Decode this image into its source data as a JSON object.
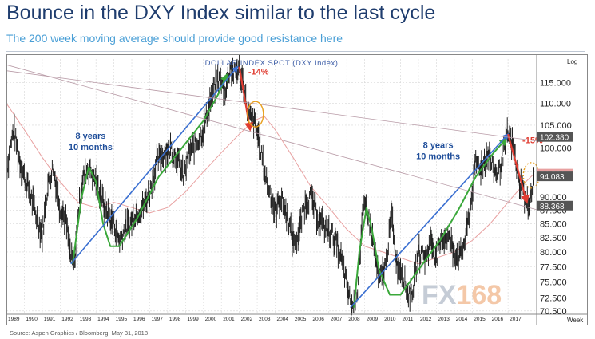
{
  "header": {
    "title": "Bounce in the DXY Index similar to the last cycle",
    "subtitle": "The 200 week moving average should provide good resistance here"
  },
  "source": "Source: Aspen Graphics / Bloomberg; May 31, 2018",
  "watermark": {
    "fx": "FX",
    "num": "168"
  },
  "colors": {
    "price": "#222222",
    "ma200": "#e8a0a0",
    "blue_trend": "#3a6fd1",
    "green_wave": "#3aa83a",
    "red_arrow": "#e03c31",
    "channel": "#b89aa6",
    "highlight": "#e8a020"
  },
  "chart_data": {
    "type": "line",
    "title": "DOLLAR INDEX SPOT (DXY Index)",
    "ylabel_top": "Log",
    "xlabel_right": "Week",
    "ylim": [
      70,
      121
    ],
    "xlim": [
      1989.0,
      2018.6
    ],
    "yticks": [
      70.5,
      72.5,
      75,
      77.5,
      80,
      82.5,
      85,
      87.5,
      90,
      95,
      100,
      105,
      110,
      115
    ],
    "ytick_labels": [
      "70.500",
      "72.500",
      "75.000",
      "77.500",
      "80.000",
      "82.500",
      "85.000",
      "87.500",
      "90.000",
      "95.000",
      "100.000",
      "105.000",
      "110.000",
      "115.000"
    ],
    "xticks": [
      1989,
      1990,
      1991,
      1992,
      1993,
      1994,
      1995,
      1996,
      1997,
      1998,
      1999,
      2000,
      2001,
      2002,
      2003,
      2004,
      2005,
      2006,
      2007,
      2008,
      2009,
      2010,
      2011,
      2012,
      2013,
      2014,
      2015,
      2016,
      2017
    ],
    "price_labels": [
      {
        "text": "102.380",
        "value": 102.38,
        "bg": "#555555"
      },
      {
        "text": "94.644",
        "value": 94.644,
        "bg": "#e8a0a0"
      },
      {
        "text": "94.083",
        "value": 94.083,
        "bg": "#555555"
      },
      {
        "text": "88.368",
        "value": 88.368,
        "bg": "#555555"
      }
    ],
    "series": [
      {
        "role": "price",
        "points": [
          [
            1989.0,
            95
          ],
          [
            1989.4,
            104
          ],
          [
            1989.7,
            98
          ],
          [
            1990.0,
            94
          ],
          [
            1990.3,
            91
          ],
          [
            1990.7,
            86
          ],
          [
            1991.0,
            83
          ],
          [
            1991.3,
            92
          ],
          [
            1991.6,
            96
          ],
          [
            1992.0,
            88
          ],
          [
            1992.3,
            86
          ],
          [
            1992.6,
            79
          ],
          [
            1992.8,
            78
          ],
          [
            1993.0,
            87
          ],
          [
            1993.3,
            94
          ],
          [
            1993.6,
            96
          ],
          [
            1993.9,
            94
          ],
          [
            1994.2,
            91
          ],
          [
            1994.5,
            88
          ],
          [
            1994.8,
            86
          ],
          [
            1995.0,
            85
          ],
          [
            1995.3,
            82
          ],
          [
            1995.6,
            84
          ],
          [
            1995.9,
            85
          ],
          [
            1996.2,
            87
          ],
          [
            1996.6,
            88
          ],
          [
            1997.0,
            91
          ],
          [
            1997.4,
            97
          ],
          [
            1997.8,
            99
          ],
          [
            1998.2,
            100
          ],
          [
            1998.6,
            97
          ],
          [
            1998.9,
            94
          ],
          [
            1999.2,
            99
          ],
          [
            1999.6,
            101
          ],
          [
            2000.0,
            104
          ],
          [
            2000.4,
            111
          ],
          [
            2000.8,
            116
          ],
          [
            2001.2,
            113
          ],
          [
            2001.5,
            119
          ],
          [
            2001.7,
            117
          ],
          [
            2002.0,
            119
          ],
          [
            2002.3,
            113
          ],
          [
            2002.5,
            107
          ],
          [
            2002.8,
            106
          ],
          [
            2003.1,
            102
          ],
          [
            2003.4,
            95
          ],
          [
            2003.8,
            90
          ],
          [
            2004.0,
            87
          ],
          [
            2004.3,
            90
          ],
          [
            2004.7,
            86
          ],
          [
            2005.0,
            82
          ],
          [
            2005.3,
            83
          ],
          [
            2005.7,
            89
          ],
          [
            2006.0,
            90
          ],
          [
            2006.4,
            86
          ],
          [
            2006.8,
            84
          ],
          [
            2007.2,
            83
          ],
          [
            2007.6,
            80
          ],
          [
            2007.9,
            76
          ],
          [
            2008.2,
            72
          ],
          [
            2008.3,
            71
          ],
          [
            2008.6,
            74
          ],
          [
            2008.9,
            87
          ],
          [
            2009.1,
            88
          ],
          [
            2009.4,
            83
          ],
          [
            2009.8,
            75
          ],
          [
            2010.2,
            78
          ],
          [
            2010.5,
            87
          ],
          [
            2010.8,
            78
          ],
          [
            2011.1,
            77
          ],
          [
            2011.4,
            73
          ],
          [
            2011.7,
            74
          ],
          [
            2012.0,
            80
          ],
          [
            2012.4,
            79
          ],
          [
            2012.7,
            82
          ],
          [
            2013.0,
            79
          ],
          [
            2013.3,
            82
          ],
          [
            2013.6,
            83
          ],
          [
            2014.0,
            80
          ],
          [
            2014.3,
            79
          ],
          [
            2014.6,
            82
          ],
          [
            2014.9,
            88
          ],
          [
            2015.2,
            97
          ],
          [
            2015.5,
            96
          ],
          [
            2015.9,
            99
          ],
          [
            2016.2,
            95
          ],
          [
            2016.5,
            95
          ],
          [
            2016.8,
            100
          ],
          [
            2017.0,
            103
          ],
          [
            2017.3,
            100
          ],
          [
            2017.6,
            93
          ],
          [
            2017.8,
            92
          ],
          [
            2018.0,
            89
          ],
          [
            2018.1,
            88.4
          ],
          [
            2018.3,
            91
          ],
          [
            2018.45,
            94.1
          ]
        ]
      },
      {
        "role": "ma200",
        "points": [
          [
            1989.0,
            110
          ],
          [
            1990.0,
            104
          ],
          [
            1991.0,
            98
          ],
          [
            1992.0,
            93
          ],
          [
            1993.0,
            89
          ],
          [
            1994.0,
            88
          ],
          [
            1995.0,
            89
          ],
          [
            1996.0,
            88
          ],
          [
            1997.0,
            87
          ],
          [
            1998.0,
            88
          ],
          [
            1999.0,
            91
          ],
          [
            2000.0,
            95
          ],
          [
            2001.0,
            99
          ],
          [
            2002.0,
            103
          ],
          [
            2002.8,
            106
          ],
          [
            2003.4,
            107
          ],
          [
            2004.0,
            104
          ],
          [
            2005.0,
            98
          ],
          [
            2006.0,
            92
          ],
          [
            2007.0,
            88
          ],
          [
            2008.0,
            84
          ],
          [
            2009.0,
            81
          ],
          [
            2010.0,
            80
          ],
          [
            2011.0,
            79
          ],
          [
            2012.0,
            78
          ],
          [
            2013.0,
            79
          ],
          [
            2014.0,
            80
          ],
          [
            2015.0,
            82
          ],
          [
            2016.0,
            85
          ],
          [
            2017.0,
            89
          ],
          [
            2018.0,
            93
          ],
          [
            2018.45,
            94.6
          ]
        ]
      }
    ],
    "annotations": [
      {
        "type": "text",
        "lines": [
          "8 years",
          "10 months"
        ],
        "x": 1993.7,
        "y": 102
      },
      {
        "type": "text",
        "lines": [
          "8 years",
          "10 months"
        ],
        "x": 2013.1,
        "y": 100
      },
      {
        "type": "text",
        "text": "-14%",
        "x": 2002.5,
        "y": 117,
        "role": "pct"
      },
      {
        "type": "text",
        "text": "-15%",
        "x": 2017.8,
        "y": 101,
        "role": "pct"
      },
      {
        "type": "trend",
        "role": "blue",
        "from": [
          1992.6,
          78
        ],
        "to": [
          2001.9,
          119
        ]
      },
      {
        "type": "trend",
        "role": "blue",
        "from": [
          2008.2,
          71
        ],
        "to": [
          2017.0,
          103
        ]
      },
      {
        "type": "arrow",
        "role": "red",
        "from": [
          2002.0,
          119
        ],
        "to": [
          2002.6,
          104
        ]
      },
      {
        "type": "arrow",
        "role": "red",
        "from": [
          2017.0,
          103
        ],
        "to": [
          2018.05,
          89
        ]
      },
      {
        "type": "channel",
        "from": [
          1989.0,
          118
        ],
        "to": [
          2018.6,
          101.5
        ]
      },
      {
        "type": "channel",
        "from": [
          1989.0,
          119.5
        ],
        "to": [
          2018.6,
          87.6
        ]
      },
      {
        "type": "circle",
        "x": 2002.9,
        "y": 107.5
      },
      {
        "type": "circle",
        "x": 2018.3,
        "y": 94.3,
        "dashed": true
      }
    ],
    "green_waves": [
      [
        [
          1992.7,
          78
        ],
        [
          1993.2,
          90
        ],
        [
          1993.6,
          96
        ],
        [
          1994.0,
          93
        ],
        [
          1994.4,
          85
        ],
        [
          1994.8,
          81
        ],
        [
          1995.3,
          81
        ],
        [
          1996.3,
          86
        ],
        [
          1997.5,
          94
        ],
        [
          1998.8,
          100
        ],
        [
          2000.0,
          106
        ],
        [
          2000.8,
          112
        ],
        [
          2001.3,
          117
        ]
      ],
      [
        [
          2008.4,
          71
        ],
        [
          2008.7,
          80
        ],
        [
          2009.1,
          88
        ],
        [
          2009.4,
          84
        ],
        [
          2009.8,
          77
        ],
        [
          2010.4,
          73
        ],
        [
          2011.0,
          73
        ],
        [
          2012.0,
          77
        ],
        [
          2013.2,
          82
        ],
        [
          2014.3,
          88
        ],
        [
          2015.2,
          94
        ],
        [
          2016.2,
          99
        ],
        [
          2016.9,
          102
        ]
      ]
    ]
  }
}
